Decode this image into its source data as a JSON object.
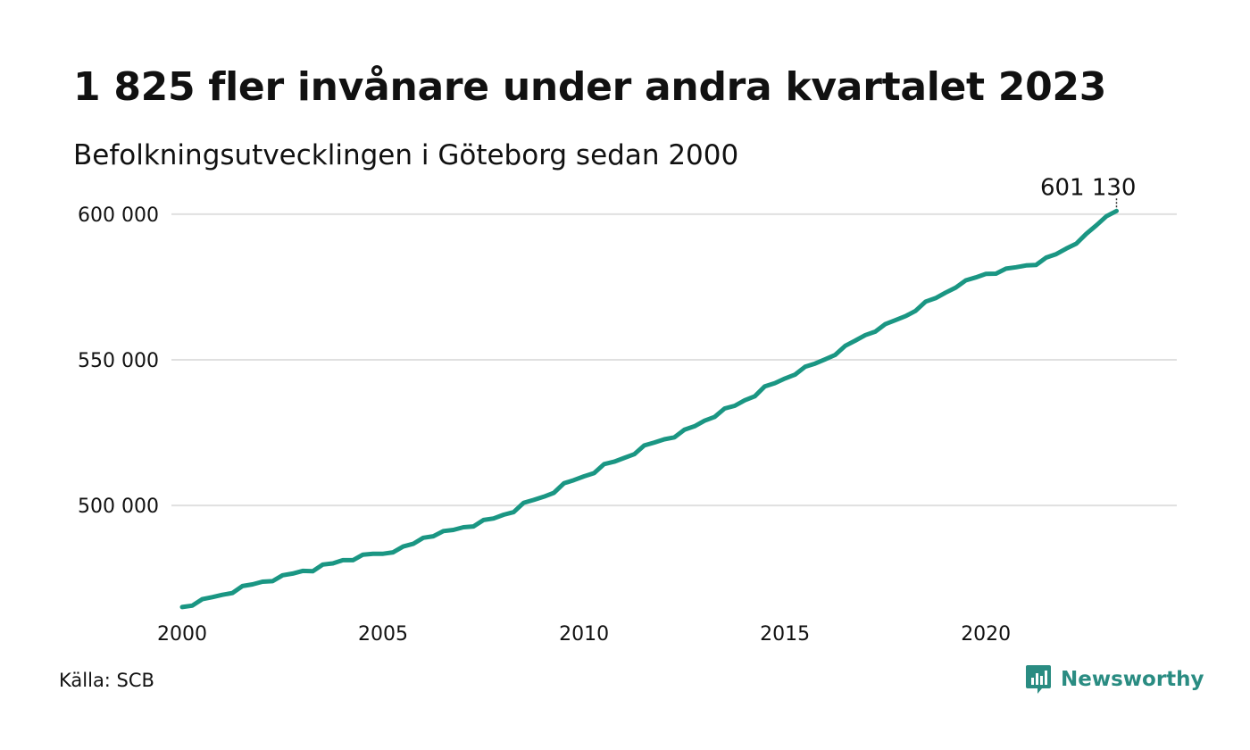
{
  "title": "1 825 fler invånare under andra kvartalet 2023",
  "subtitle": "Befolkningsutvecklingen i Göteborg sedan 2000",
  "source": "Källa: SCB",
  "brand": {
    "name": "Newsworthy",
    "logo_icon": "newsworthy-logo-icon"
  },
  "colors": {
    "line": "#1a9683",
    "grid": "#e0e0e0",
    "brand": "#2a8c82"
  },
  "chart_data": {
    "type": "line",
    "title": "1 825 fler invånare under andra kvartalet 2023",
    "subtitle": "Befolkningsutvecklingen i Göteborg sedan 2000",
    "xlabel": "",
    "ylabel": "",
    "xlim": [
      2000,
      2024.75
    ],
    "ylim": [
      462000,
      605500
    ],
    "x_ticks": [
      2000,
      2005,
      2010,
      2015,
      2020
    ],
    "x_tick_labels": [
      "2000",
      "2005",
      "2010",
      "2015",
      "2020"
    ],
    "y_ticks": [
      500000,
      550000,
      600000
    ],
    "y_tick_labels": [
      "500 000",
      "550 000",
      "600 000"
    ],
    "grid": "horizontal",
    "legend": "none",
    "annotation": {
      "x": 2023.25,
      "y": 601130,
      "label": "601 130"
    },
    "series": [
      {
        "points": [
          [
            2000.0,
            465100
          ],
          [
            2000.25,
            465600
          ],
          [
            2000.5,
            467800
          ],
          [
            2000.75,
            468500
          ],
          [
            2001.0,
            469300
          ],
          [
            2001.25,
            469900
          ],
          [
            2001.5,
            472300
          ],
          [
            2001.75,
            472900
          ],
          [
            2002.0,
            473800
          ],
          [
            2002.25,
            474000
          ],
          [
            2002.5,
            476000
          ],
          [
            2002.75,
            476600
          ],
          [
            2003.0,
            477500
          ],
          [
            2003.25,
            477400
          ],
          [
            2003.5,
            479700
          ],
          [
            2003.75,
            480100
          ],
          [
            2004.0,
            481200
          ],
          [
            2004.25,
            481200
          ],
          [
            2004.5,
            483100
          ],
          [
            2004.75,
            483400
          ],
          [
            2005.0,
            483400
          ],
          [
            2005.25,
            483900
          ],
          [
            2005.5,
            485900
          ],
          [
            2005.75,
            486800
          ],
          [
            2006.0,
            488900
          ],
          [
            2006.25,
            489400
          ],
          [
            2006.5,
            491200
          ],
          [
            2006.75,
            491600
          ],
          [
            2007.0,
            492500
          ],
          [
            2007.25,
            492800
          ],
          [
            2007.5,
            495000
          ],
          [
            2007.75,
            495500
          ],
          [
            2008.0,
            496800
          ],
          [
            2008.25,
            497700
          ],
          [
            2008.5,
            500900
          ],
          [
            2008.75,
            501900
          ],
          [
            2009.0,
            503000
          ],
          [
            2009.25,
            504300
          ],
          [
            2009.5,
            507600
          ],
          [
            2009.75,
            508700
          ],
          [
            2010.0,
            510000
          ],
          [
            2010.25,
            511100
          ],
          [
            2010.5,
            514200
          ],
          [
            2010.75,
            515000
          ],
          [
            2011.0,
            516300
          ],
          [
            2011.25,
            517600
          ],
          [
            2011.5,
            520600
          ],
          [
            2011.75,
            521600
          ],
          [
            2012.0,
            522700
          ],
          [
            2012.25,
            523400
          ],
          [
            2012.5,
            526000
          ],
          [
            2012.75,
            527200
          ],
          [
            2013.0,
            529100
          ],
          [
            2013.25,
            530400
          ],
          [
            2013.5,
            533300
          ],
          [
            2013.75,
            534200
          ],
          [
            2014.0,
            536100
          ],
          [
            2014.25,
            537500
          ],
          [
            2014.5,
            540900
          ],
          [
            2014.75,
            542000
          ],
          [
            2015.0,
            543600
          ],
          [
            2015.25,
            544900
          ],
          [
            2015.5,
            547600
          ],
          [
            2015.75,
            548700
          ],
          [
            2016.0,
            550200
          ],
          [
            2016.25,
            551700
          ],
          [
            2016.5,
            554800
          ],
          [
            2016.75,
            556600
          ],
          [
            2017.0,
            558500
          ],
          [
            2017.25,
            559700
          ],
          [
            2017.5,
            562300
          ],
          [
            2017.75,
            563600
          ],
          [
            2018.0,
            565000
          ],
          [
            2018.25,
            566800
          ],
          [
            2018.5,
            570000
          ],
          [
            2018.75,
            571200
          ],
          [
            2019.0,
            573100
          ],
          [
            2019.25,
            574800
          ],
          [
            2019.5,
            577300
          ],
          [
            2019.75,
            578300
          ],
          [
            2020.0,
            579500
          ],
          [
            2020.25,
            579600
          ],
          [
            2020.5,
            581300
          ],
          [
            2020.75,
            581800
          ],
          [
            2021.0,
            582400
          ],
          [
            2021.25,
            582600
          ],
          [
            2021.5,
            585100
          ],
          [
            2021.75,
            586300
          ],
          [
            2022.0,
            588200
          ],
          [
            2022.25,
            589900
          ],
          [
            2022.5,
            593300
          ],
          [
            2022.75,
            596200
          ],
          [
            2023.0,
            599300
          ],
          [
            2023.25,
            601130
          ]
        ]
      }
    ]
  }
}
